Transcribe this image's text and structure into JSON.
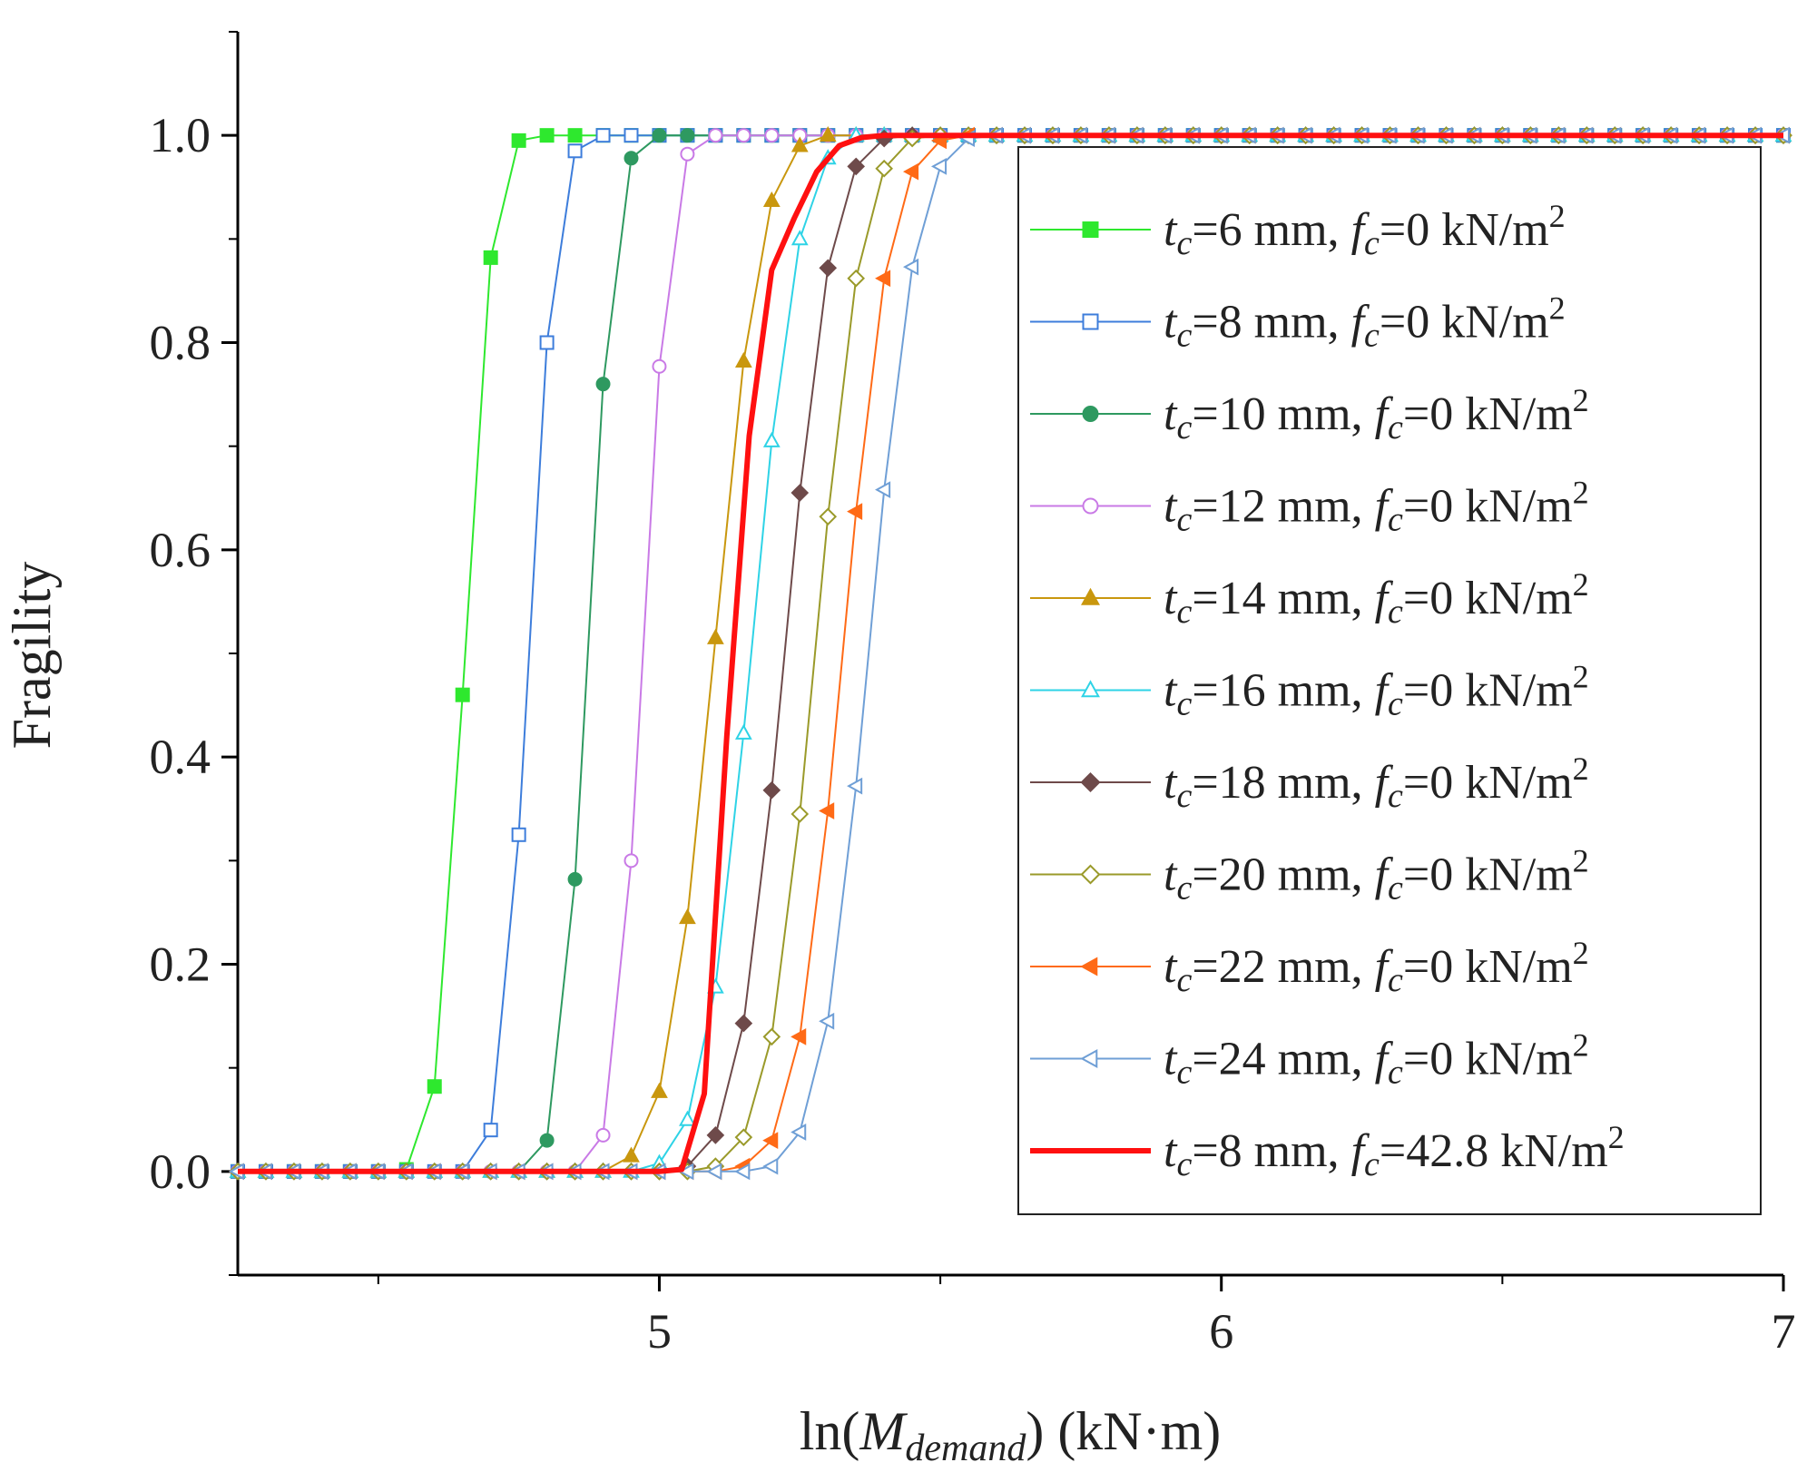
{
  "chart_data": {
    "type": "line",
    "title": "",
    "xlabel": {
      "prefix": "ln(",
      "var": "M",
      "sub": "demand",
      "suffix": ") (kN·m)"
    },
    "ylabel": "Fragility",
    "xlim": [
      4.25,
      7.0
    ],
    "ylim": [
      -0.1,
      1.1
    ],
    "xticks": [
      5,
      6,
      7
    ],
    "xtick_labels": [
      "5",
      "6",
      "7"
    ],
    "xminor": [
      4.5,
      5.5,
      6.5
    ],
    "yticks": [
      0.0,
      0.2,
      0.4,
      0.6,
      0.8,
      1.0
    ],
    "ytick_labels": [
      "0.0",
      "0.2",
      "0.4",
      "0.6",
      "0.8",
      "1.0"
    ],
    "yminor": [
      -0.1,
      0.1,
      0.3,
      0.5,
      0.7,
      0.9,
      1.1
    ],
    "x": [
      4.25,
      4.3,
      4.35,
      4.4,
      4.45,
      4.5,
      4.55,
      4.6,
      4.65,
      4.7,
      4.75,
      4.8,
      4.85,
      4.9,
      4.95,
      5.0,
      5.05,
      5.1,
      5.15,
      5.2,
      5.25,
      5.3,
      5.35,
      5.4,
      5.45,
      5.5,
      5.55,
      5.6,
      5.65,
      5.7,
      5.75,
      5.8,
      5.85,
      5.9,
      5.95,
      6.0,
      6.05,
      6.1,
      6.15,
      6.2,
      6.25,
      6.3,
      6.35,
      6.4,
      6.45,
      6.5,
      6.55,
      6.6,
      6.65,
      6.7,
      6.75,
      6.8,
      6.85,
      6.9,
      6.95,
      7.0
    ],
    "legend_position": "right-center",
    "series": [
      {
        "name": "tc=6 mm, fc=0 kN/m2",
        "label": {
          "t": "t",
          "tsub": "c",
          "tval": "=6 mm, ",
          "f": "f",
          "fsub": "c",
          "fval": "=0 kN/m",
          "sup": "2"
        },
        "color": "#2ee82e",
        "marker": "square",
        "filled": true,
        "line_width": 2,
        "values": [
          0,
          0,
          0,
          0,
          0,
          0,
          0.002,
          0.082,
          0.46,
          0.882,
          0.995,
          1,
          1,
          1,
          1,
          1,
          1,
          1,
          1,
          1,
          1,
          1,
          1,
          1,
          1,
          1,
          1,
          1,
          1,
          1,
          1,
          1,
          1,
          1,
          1,
          1,
          1,
          1,
          1,
          1,
          1,
          1,
          1,
          1,
          1,
          1,
          1,
          1,
          1,
          1,
          1,
          1,
          1,
          1,
          1,
          1
        ]
      },
      {
        "name": "tc=8 mm, fc=0 kN/m2",
        "label": {
          "t": "t",
          "tsub": "c",
          "tval": "=8 mm, ",
          "f": "f",
          "fsub": "c",
          "fval": "=0 kN/m",
          "sup": "2"
        },
        "color": "#3d7ddb",
        "marker": "square",
        "filled": false,
        "line_width": 2,
        "values": [
          0,
          0,
          0,
          0,
          0,
          0,
          0,
          0,
          0,
          0.04,
          0.325,
          0.8,
          0.985,
          1,
          1,
          1,
          1,
          1,
          1,
          1,
          1,
          1,
          1,
          1,
          1,
          1,
          1,
          1,
          1,
          1,
          1,
          1,
          1,
          1,
          1,
          1,
          1,
          1,
          1,
          1,
          1,
          1,
          1,
          1,
          1,
          1,
          1,
          1,
          1,
          1,
          1,
          1,
          1,
          1,
          1,
          1
        ]
      },
      {
        "name": "tc=10 mm, fc=0 kN/m2",
        "label": {
          "t": "t",
          "tsub": "c",
          "tval": "=10 mm, ",
          "f": "f",
          "fsub": "c",
          "fval": "=0 kN/m",
          "sup": "2"
        },
        "color": "#2e9960",
        "marker": "circle",
        "filled": true,
        "line_width": 2,
        "values": [
          0,
          0,
          0,
          0,
          0,
          0,
          0,
          0,
          0,
          0,
          0,
          0.03,
          0.282,
          0.76,
          0.978,
          1,
          1,
          1,
          1,
          1,
          1,
          1,
          1,
          1,
          1,
          1,
          1,
          1,
          1,
          1,
          1,
          1,
          1,
          1,
          1,
          1,
          1,
          1,
          1,
          1,
          1,
          1,
          1,
          1,
          1,
          1,
          1,
          1,
          1,
          1,
          1,
          1,
          1,
          1,
          1,
          1
        ]
      },
      {
        "name": "tc=12 mm, fc=0 kN/m2",
        "label": {
          "t": "t",
          "tsub": "c",
          "tval": "=12 mm, ",
          "f": "f",
          "fsub": "c",
          "fval": "=0 kN/m",
          "sup": "2"
        },
        "color": "#c97ae6",
        "marker": "circle",
        "filled": false,
        "line_width": 2,
        "values": [
          0,
          0,
          0,
          0,
          0,
          0,
          0,
          0,
          0,
          0,
          0,
          0,
          0,
          0.035,
          0.3,
          0.777,
          0.982,
          1,
          1,
          1,
          1,
          1,
          1,
          1,
          1,
          1,
          1,
          1,
          1,
          1,
          1,
          1,
          1,
          1,
          1,
          1,
          1,
          1,
          1,
          1,
          1,
          1,
          1,
          1,
          1,
          1,
          1,
          1,
          1,
          1,
          1,
          1,
          1,
          1,
          1,
          1
        ]
      },
      {
        "name": "tc=14 mm, fc=0 kN/m2",
        "label": {
          "t": "t",
          "tsub": "c",
          "tval": "=14 mm, ",
          "f": "f",
          "fsub": "c",
          "fval": "=0 kN/m",
          "sup": "2"
        },
        "color": "#c9970e",
        "marker": "triangle-up",
        "filled": true,
        "line_width": 2,
        "values": [
          0,
          0,
          0,
          0,
          0,
          0,
          0,
          0,
          0,
          0,
          0,
          0,
          0,
          0,
          0.015,
          0.077,
          0.245,
          0.515,
          0.782,
          0.937,
          0.99,
          1,
          1,
          1,
          1,
          1,
          1,
          1,
          1,
          1,
          1,
          1,
          1,
          1,
          1,
          1,
          1,
          1,
          1,
          1,
          1,
          1,
          1,
          1,
          1,
          1,
          1,
          1,
          1,
          1,
          1,
          1,
          1,
          1,
          1,
          1
        ]
      },
      {
        "name": "tc=16 mm, fc=0 kN/m2",
        "label": {
          "t": "t",
          "tsub": "c",
          "tval": "=16 mm, ",
          "f": "f",
          "fsub": "c",
          "fval": "=0 kN/m",
          "sup": "2"
        },
        "color": "#2ed3e6",
        "marker": "triangle-up",
        "filled": false,
        "line_width": 2,
        "values": [
          0,
          0,
          0,
          0,
          0,
          0,
          0,
          0,
          0,
          0,
          0,
          0,
          0,
          0,
          0,
          0.008,
          0.05,
          0.178,
          0.423,
          0.705,
          0.9,
          0.978,
          1,
          1,
          1,
          1,
          1,
          1,
          1,
          1,
          1,
          1,
          1,
          1,
          1,
          1,
          1,
          1,
          1,
          1,
          1,
          1,
          1,
          1,
          1,
          1,
          1,
          1,
          1,
          1,
          1,
          1,
          1,
          1,
          1,
          1
        ]
      },
      {
        "name": "tc=18 mm, fc=0 kN/m2",
        "label": {
          "t": "t",
          "tsub": "c",
          "tval": "=18 mm, ",
          "f": "f",
          "fsub": "c",
          "fval": "=0 kN/m",
          "sup": "2"
        },
        "color": "#6e4a4a",
        "marker": "diamond",
        "filled": true,
        "line_width": 2,
        "values": [
          0,
          0,
          0,
          0,
          0,
          0,
          0,
          0,
          0,
          0,
          0,
          0,
          0,
          0,
          0,
          0,
          0.005,
          0.035,
          0.143,
          0.368,
          0.655,
          0.872,
          0.97,
          0.997,
          1,
          1,
          1,
          1,
          1,
          1,
          1,
          1,
          1,
          1,
          1,
          1,
          1,
          1,
          1,
          1,
          1,
          1,
          1,
          1,
          1,
          1,
          1,
          1,
          1,
          1,
          1,
          1,
          1,
          1,
          1,
          1
        ]
      },
      {
        "name": "tc=20 mm, fc=0 kN/m2",
        "label": {
          "t": "t",
          "tsub": "c",
          "tval": "=20 mm, ",
          "f": "f",
          "fsub": "c",
          "fval": "=0 kN/m",
          "sup": "2"
        },
        "color": "#9a9a2a",
        "marker": "diamond",
        "filled": false,
        "line_width": 2,
        "values": [
          0,
          0,
          0,
          0,
          0,
          0,
          0,
          0,
          0,
          0,
          0,
          0,
          0,
          0,
          0,
          0,
          0,
          0.005,
          0.033,
          0.13,
          0.345,
          0.632,
          0.862,
          0.968,
          0.997,
          1,
          1,
          1,
          1,
          1,
          1,
          1,
          1,
          1,
          1,
          1,
          1,
          1,
          1,
          1,
          1,
          1,
          1,
          1,
          1,
          1,
          1,
          1,
          1,
          1,
          1,
          1,
          1,
          1,
          1,
          1
        ]
      },
      {
        "name": "tc=22 mm, fc=0 kN/m2",
        "label": {
          "t": "t",
          "tsub": "c",
          "tval": "=22 mm, ",
          "f": "f",
          "fsub": "c",
          "fval": "=0 kN/m",
          "sup": "2"
        },
        "color": "#ff6a16",
        "marker": "triangle-left",
        "filled": true,
        "line_width": 2,
        "values": [
          0,
          0,
          0,
          0,
          0,
          0,
          0,
          0,
          0,
          0,
          0,
          0,
          0,
          0,
          0,
          0,
          0,
          0,
          0.005,
          0.03,
          0.13,
          0.348,
          0.637,
          0.862,
          0.965,
          0.995,
          1,
          1,
          1,
          1,
          1,
          1,
          1,
          1,
          1,
          1,
          1,
          1,
          1,
          1,
          1,
          1,
          1,
          1,
          1,
          1,
          1,
          1,
          1,
          1,
          1,
          1,
          1,
          1,
          1,
          1
        ]
      },
      {
        "name": "tc=24 mm, fc=0 kN/m2",
        "label": {
          "t": "t",
          "tsub": "c",
          "tval": "=24 mm, ",
          "f": "f",
          "fsub": "c",
          "fval": "=0 kN/m",
          "sup": "2"
        },
        "color": "#6f9fd6",
        "marker": "triangle-left",
        "filled": false,
        "line_width": 2,
        "values": [
          0,
          0,
          0,
          0,
          0,
          0,
          0,
          0,
          0,
          0,
          0,
          0,
          0,
          0,
          0,
          0,
          0,
          0,
          0,
          0.005,
          0.038,
          0.145,
          0.372,
          0.658,
          0.873,
          0.97,
          0.997,
          1,
          1,
          1,
          1,
          1,
          1,
          1,
          1,
          1,
          1,
          1,
          1,
          1,
          1,
          1,
          1,
          1,
          1,
          1,
          1,
          1,
          1,
          1,
          1,
          1,
          1,
          1,
          1,
          1
        ]
      },
      {
        "name": "tc=8 mm, fc=42.8 kN/m2",
        "label": {
          "t": "t",
          "tsub": "c",
          "tval": "=8 mm, ",
          "f": "f",
          "fsub": "c",
          "fval": "=42.8 kN/m",
          "sup": "2"
        },
        "color": "#ff1010",
        "marker": "none",
        "filled": false,
        "line_width": 6,
        "x": [
          4.25,
          5.0,
          5.04,
          5.08,
          5.12,
          5.16,
          5.2,
          5.24,
          5.28,
          5.32,
          5.36,
          5.4,
          5.44,
          5.5,
          6.0,
          6.5,
          7.0
        ],
        "values": [
          0,
          0,
          0.002,
          0.075,
          0.42,
          0.71,
          0.87,
          0.92,
          0.965,
          0.99,
          0.998,
          1,
          1,
          1,
          1,
          1,
          1
        ]
      }
    ]
  }
}
